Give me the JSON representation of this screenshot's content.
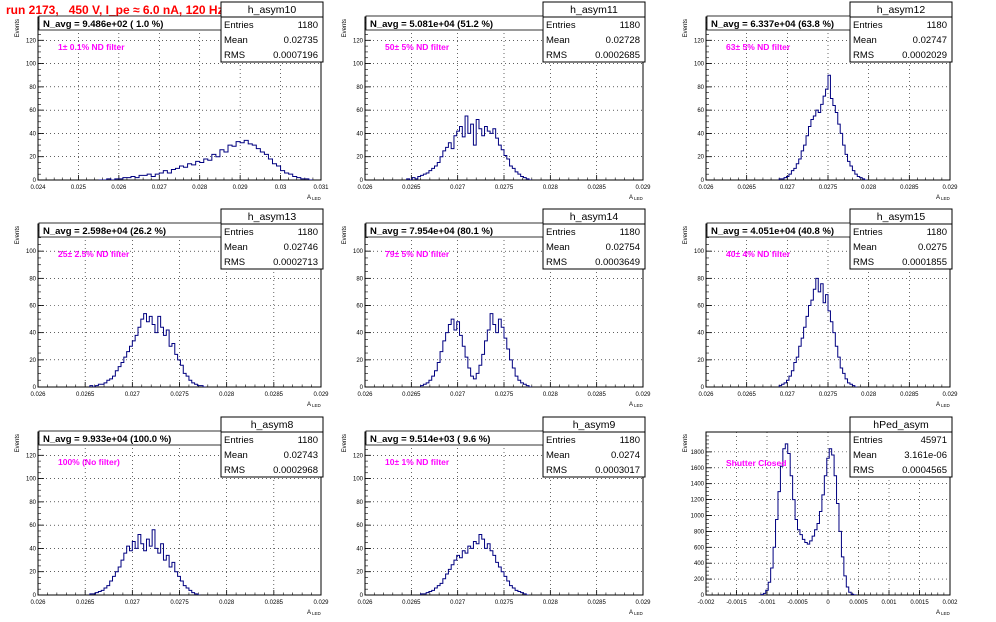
{
  "page": {
    "run_title": "run 2173,   450 V, I_pe ≈ 6.0 nA, 120 Hz"
  },
  "chart_data": [
    {
      "type": "bar",
      "name": "h_asym10",
      "title": "N_avg = 9.486e+02 ( 1.0 %)",
      "annotation": "1± 0.1% ND filter",
      "ylabel": "Events",
      "xlabel": "A",
      "xlabel_sub": "LED",
      "stats": {
        "entries": "1180",
        "mean": "0.02735",
        "rms": "0.0007196"
      },
      "xlim": [
        0.024,
        0.031
      ],
      "ylim": [
        0,
        140
      ],
      "xticks": [
        0.024,
        0.025,
        0.026,
        0.027,
        0.028,
        0.029,
        0.03,
        0.031
      ],
      "xtick_labels": [
        "0.024",
        "0.025",
        "0.026",
        "0.027",
        "0.028",
        "0.029",
        "0.03",
        "0.031"
      ],
      "yticks": [
        0,
        20,
        40,
        60,
        80,
        100,
        120
      ],
      "bin_start": 0.0255,
      "bin_width": 0.0001,
      "values": [
        0,
        0,
        1,
        0,
        1,
        1,
        2,
        2,
        3,
        2,
        4,
        4,
        5,
        3,
        5,
        6,
        8,
        6,
        9,
        10,
        12,
        11,
        14,
        13,
        16,
        15,
        18,
        17,
        22,
        20,
        26,
        24,
        30,
        29,
        33,
        32,
        34,
        31,
        30,
        27,
        24,
        22,
        18,
        14,
        12,
        8,
        6,
        5,
        3,
        2,
        1,
        1,
        0
      ]
    },
    {
      "type": "bar",
      "name": "h_asym11",
      "title": "N_avg = 5.081e+04 (51.2 %)",
      "annotation": "50± 5% ND filter",
      "ylabel": "Events",
      "xlabel": "A",
      "xlabel_sub": "LED",
      "stats": {
        "entries": "1180",
        "mean": "0.02728",
        "rms": "0.0002685"
      },
      "xlim": [
        0.026,
        0.029
      ],
      "ylim": [
        0,
        140
      ],
      "xticks": [
        0.026,
        0.0265,
        0.027,
        0.0275,
        0.028,
        0.0285,
        0.029
      ],
      "xtick_labels": [
        "0.026",
        "0.0265",
        "0.027",
        "0.0275",
        "0.028",
        "0.0285",
        "0.029"
      ],
      "yticks": [
        0,
        20,
        40,
        60,
        80,
        100,
        120
      ],
      "bin_start": 0.02645,
      "bin_width": 3e-05,
      "values": [
        1,
        0,
        2,
        1,
        3,
        4,
        5,
        6,
        8,
        10,
        12,
        15,
        20,
        25,
        28,
        32,
        27,
        38,
        42,
        46,
        37,
        55,
        40,
        48,
        30,
        52,
        44,
        38,
        46,
        42,
        40,
        44,
        36,
        30,
        26,
        21,
        18,
        12,
        10,
        7,
        5,
        3,
        2,
        1,
        0
      ]
    },
    {
      "type": "bar",
      "name": "h_asym12",
      "title": "N_avg = 6.337e+04 (63.8 %)",
      "annotation": "63± 5% ND filter",
      "ylabel": "Events",
      "xlabel": "A",
      "xlabel_sub": "LED",
      "stats": {
        "entries": "1180",
        "mean": "0.02747",
        "rms": "0.0002029"
      },
      "xlim": [
        0.026,
        0.029
      ],
      "ylim": [
        0,
        140
      ],
      "xticks": [
        0.026,
        0.0265,
        0.027,
        0.0275,
        0.028,
        0.0285,
        0.029
      ],
      "xtick_labels": [
        "0.026",
        "0.0265",
        "0.027",
        "0.0275",
        "0.028",
        "0.0285",
        "0.029"
      ],
      "yticks": [
        0,
        20,
        40,
        60,
        80,
        100,
        120
      ],
      "bin_start": 0.0269,
      "bin_width": 3e-05,
      "values": [
        1,
        1,
        2,
        3,
        5,
        8,
        10,
        14,
        18,
        25,
        30,
        38,
        46,
        52,
        55,
        60,
        58,
        65,
        72,
        78,
        90,
        70,
        64,
        58,
        48,
        40,
        30,
        22,
        16,
        12,
        8,
        5,
        3,
        2,
        1,
        0
      ]
    },
    {
      "type": "bar",
      "name": "h_asym13",
      "title": "N_avg = 2.598e+04 (26.2 %)",
      "annotation": "25± 2.5% ND filter",
      "ylabel": "Events",
      "xlabel": "A",
      "xlabel_sub": "LED",
      "stats": {
        "entries": "1180",
        "mean": "0.02746",
        "rms": "0.0002713"
      },
      "xlim": [
        0.026,
        0.029
      ],
      "ylim": [
        0,
        120
      ],
      "xticks": [
        0.026,
        0.0265,
        0.027,
        0.0275,
        0.028,
        0.0285,
        0.029
      ],
      "xtick_labels": [
        "0.026",
        "0.0265",
        "0.027",
        "0.0275",
        "0.028",
        "0.0285",
        "0.029"
      ],
      "yticks": [
        0,
        20,
        40,
        60,
        80,
        100
      ],
      "bin_start": 0.02655,
      "bin_width": 3e-05,
      "values": [
        1,
        0,
        1,
        2,
        2,
        3,
        5,
        6,
        8,
        12,
        15,
        18,
        22,
        26,
        30,
        34,
        38,
        44,
        50,
        54,
        48,
        52,
        46,
        40,
        52,
        44,
        38,
        42,
        30,
        32,
        24,
        20,
        16,
        10,
        8,
        5,
        3,
        2,
        1,
        1,
        0
      ]
    },
    {
      "type": "bar",
      "name": "h_asym14",
      "title": "N_avg = 7.954e+04 (80.1 %)",
      "annotation": "79± 5% ND filter",
      "ylabel": "Events",
      "xlabel": "A",
      "xlabel_sub": "LED",
      "stats": {
        "entries": "1180",
        "mean": "0.02754",
        "rms": "0.0003649"
      },
      "xlim": [
        0.026,
        0.029
      ],
      "ylim": [
        0,
        120
      ],
      "xticks": [
        0.026,
        0.0265,
        0.027,
        0.0275,
        0.028,
        0.0285,
        0.029
      ],
      "xtick_labels": [
        "0.026",
        "0.0265",
        "0.027",
        "0.0275",
        "0.028",
        "0.0285",
        "0.029"
      ],
      "yticks": [
        0,
        20,
        40,
        60,
        80,
        100
      ],
      "bin_start": 0.0266,
      "bin_width": 3e-05,
      "values": [
        1,
        2,
        3,
        5,
        8,
        12,
        18,
        26,
        34,
        40,
        46,
        50,
        42,
        48,
        38,
        30,
        22,
        14,
        8,
        6,
        10,
        16,
        24,
        34,
        42,
        54,
        46,
        40,
        50,
        44,
        36,
        28,
        20,
        14,
        8,
        5,
        3,
        2,
        1,
        0
      ]
    },
    {
      "type": "bar",
      "name": "h_asym15",
      "title": "N_avg = 4.051e+04 (40.8 %)",
      "annotation": "40± 4% ND filter",
      "ylabel": "Events",
      "xlabel": "A",
      "xlabel_sub": "LED",
      "stats": {
        "entries": "1180",
        "mean": "0.0275",
        "rms": "0.0001855"
      },
      "xlim": [
        0.026,
        0.029
      ],
      "ylim": [
        0,
        120
      ],
      "xticks": [
        0.026,
        0.0265,
        0.027,
        0.0275,
        0.028,
        0.0285,
        0.029
      ],
      "xtick_labels": [
        "0.026",
        "0.0265",
        "0.027",
        "0.0275",
        "0.028",
        "0.0285",
        "0.029"
      ],
      "yticks": [
        0,
        20,
        40,
        60,
        80,
        100
      ],
      "bin_start": 0.0269,
      "bin_width": 3e-05,
      "values": [
        1,
        2,
        3,
        5,
        8,
        12,
        18,
        22,
        30,
        36,
        44,
        52,
        60,
        64,
        72,
        80,
        70,
        76,
        62,
        68,
        56,
        48,
        40,
        30,
        22,
        14,
        10,
        6,
        3,
        2,
        1,
        0
      ]
    },
    {
      "type": "bar",
      "name": "h_asym8",
      "title": "N_avg = 9.933e+04 (100.0 %)",
      "annotation": "100% (No filter)",
      "ylabel": "Events",
      "xlabel": "A",
      "xlabel_sub": "LED",
      "stats": {
        "entries": "1180",
        "mean": "0.02743",
        "rms": "0.0002968"
      },
      "xlim": [
        0.026,
        0.029
      ],
      "ylim": [
        0,
        140
      ],
      "xticks": [
        0.026,
        0.0265,
        0.027,
        0.0275,
        0.028,
        0.0285,
        0.029
      ],
      "xtick_labels": [
        "0.026",
        "0.0265",
        "0.027",
        "0.0275",
        "0.028",
        "0.0285",
        "0.029"
      ],
      "yticks": [
        0,
        20,
        40,
        60,
        80,
        100,
        120
      ],
      "bin_start": 0.02655,
      "bin_width": 3e-05,
      "values": [
        1,
        1,
        2,
        3,
        4,
        6,
        8,
        12,
        16,
        20,
        24,
        30,
        36,
        42,
        38,
        46,
        40,
        52,
        44,
        38,
        48,
        42,
        56,
        40,
        36,
        44,
        30,
        34,
        24,
        28,
        20,
        16,
        12,
        8,
        6,
        4,
        2,
        1,
        0
      ]
    },
    {
      "type": "bar",
      "name": "h_asym9",
      "title": "N_avg = 9.514e+03 ( 9.6 %)",
      "annotation": "10± 1% ND filter",
      "ylabel": "Events",
      "xlabel": "A",
      "xlabel_sub": "LED",
      "stats": {
        "entries": "1180",
        "mean": "0.0274",
        "rms": "0.0003017"
      },
      "xlim": [
        0.026,
        0.029
      ],
      "ylim": [
        0,
        140
      ],
      "xticks": [
        0.026,
        0.0265,
        0.027,
        0.0275,
        0.028,
        0.0285,
        0.029
      ],
      "xtick_labels": [
        "0.026",
        "0.0265",
        "0.027",
        "0.0275",
        "0.028",
        "0.0285",
        "0.029"
      ],
      "yticks": [
        0,
        20,
        40,
        60,
        80,
        100,
        120
      ],
      "bin_start": 0.0266,
      "bin_width": 3e-05,
      "values": [
        1,
        1,
        2,
        3,
        4,
        6,
        8,
        10,
        14,
        18,
        22,
        26,
        30,
        34,
        32,
        38,
        36,
        42,
        40,
        46,
        44,
        52,
        48,
        40,
        44,
        38,
        34,
        28,
        24,
        20,
        16,
        12,
        8,
        6,
        4,
        3,
        2,
        1,
        0
      ]
    },
    {
      "type": "bar",
      "name": "hPed_asym",
      "title": "",
      "annotation": "Shutter Closed",
      "ylabel": "Events",
      "xlabel": "A",
      "xlabel_sub": "LED",
      "stats": {
        "entries": "45971",
        "mean": "3.161e-06",
        "rms": "0.0004565"
      },
      "xlim": [
        -0.002,
        0.002
      ],
      "ylim": [
        0,
        2050
      ],
      "xticks": [
        -0.002,
        -0.0015,
        -0.001,
        -0.0005,
        0,
        0.0005,
        0.001,
        0.0015,
        0.002
      ],
      "xtick_labels": [
        "-0.002",
        "-0.0015",
        "-0.001",
        "-0.0005",
        "0",
        "0.0005",
        "0.001",
        "0.0015",
        "0.002"
      ],
      "yticks": [
        0,
        200,
        400,
        600,
        800,
        1000,
        1200,
        1400,
        1600,
        1800
      ],
      "bin_start": -0.0011,
      "bin_width": 4e-05,
      "values": [
        5,
        20,
        60,
        160,
        340,
        600,
        950,
        1300,
        1620,
        1840,
        1900,
        1780,
        1500,
        1200,
        950,
        820,
        760,
        700,
        660,
        640,
        680,
        740,
        820,
        900,
        1050,
        1260,
        1500,
        1720,
        1840,
        1760,
        1500,
        1150,
        800,
        480,
        240,
        100,
        35,
        10,
        2
      ]
    }
  ]
}
